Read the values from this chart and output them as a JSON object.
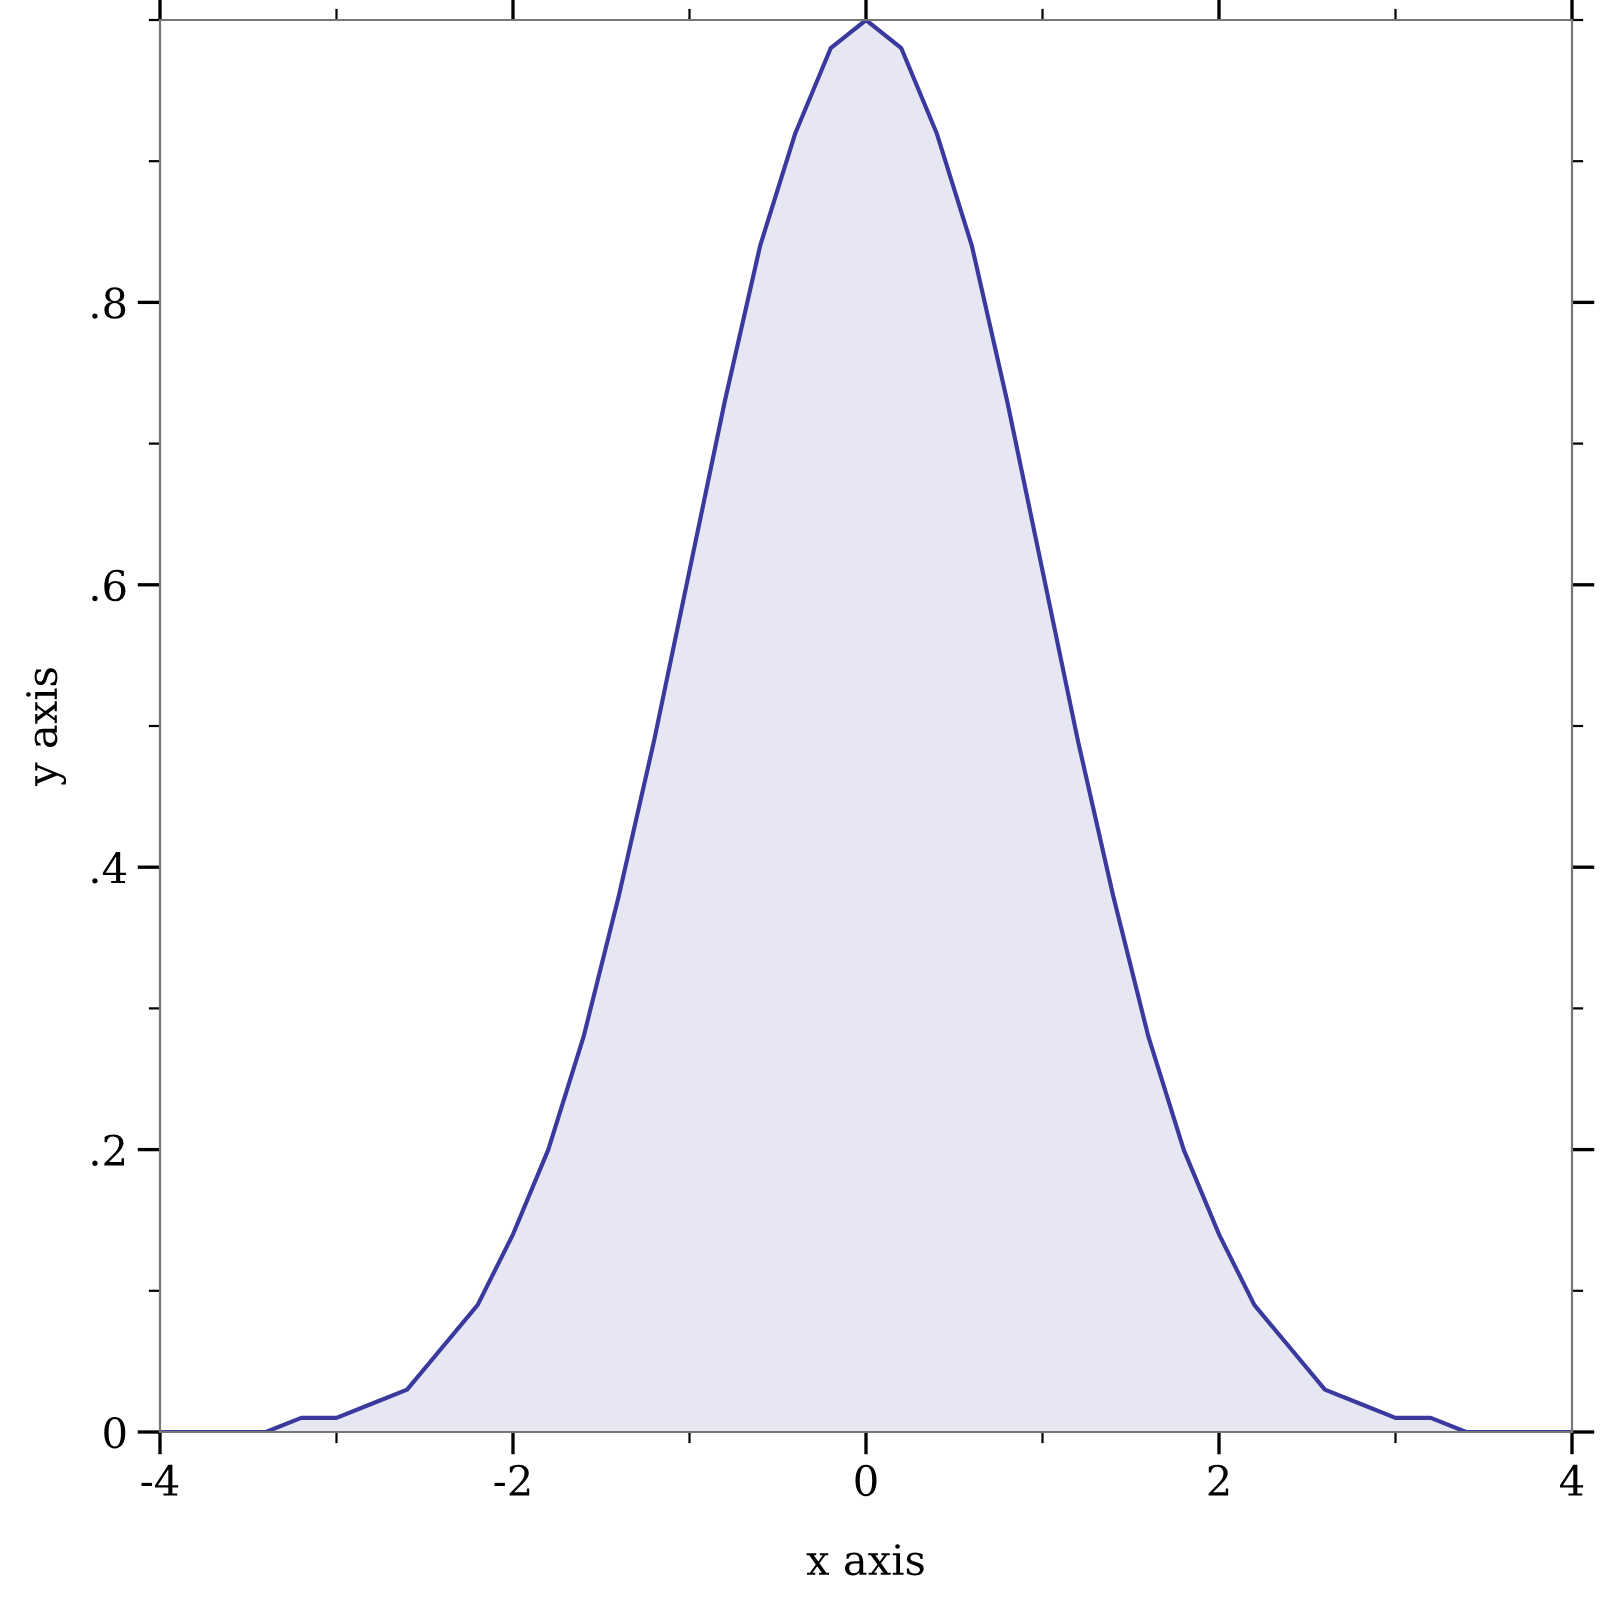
{
  "chart_data": {
    "type": "area",
    "xlabel": "x axis",
    "ylabel": "y axis",
    "x": [
      -4,
      -3.8,
      -3.6,
      -3.4,
      -3.2,
      -3,
      -2.8,
      -2.6,
      -2.4,
      -2.2,
      -2,
      -1.8,
      -1.6,
      -1.4,
      -1.2,
      -1,
      -0.8,
      -0.6,
      -0.4,
      -0.2,
      0,
      0.2,
      0.4,
      0.6,
      0.8,
      1,
      1.2,
      1.4,
      1.6,
      1.8,
      2,
      2.2,
      2.4,
      2.6,
      2.8,
      3,
      3.2,
      3.4,
      3.6,
      3.8,
      4
    ],
    "series": [
      {
        "color": "#3a3a9e",
        "values": [
          0,
          0,
          0,
          0,
          0.01,
          0.01,
          0.02,
          0.03,
          0.06,
          0.09,
          0.14,
          0.2,
          0.28,
          0.38,
          0.49,
          0.61,
          0.73,
          0.84,
          0.92,
          0.98,
          1,
          0.98,
          0.92,
          0.84,
          0.73,
          0.61,
          0.49,
          0.38,
          0.28,
          0.2,
          0.14,
          0.09,
          0.06,
          0.03,
          0.02,
          0.01,
          0.01,
          0,
          0,
          0,
          0
        ]
      }
    ],
    "xlim": [
      -4,
      4
    ],
    "ylim": [
      0,
      1
    ],
    "xticks": [
      -4,
      {
        "value": -3,
        "label": null
      },
      -2,
      {
        "value": -1,
        "label": null
      },
      0,
      {
        "value": 1,
        "label": null
      },
      2,
      {
        "value": 3,
        "label": null
      },
      4
    ],
    "yticks": [
      0,
      {
        "value": 0.1,
        "label": null
      },
      {
        "value": 0.2,
        "label": ".2"
      },
      {
        "value": 0.3,
        "label": null
      },
      {
        "value": 0.4,
        "label": ".4"
      },
      {
        "value": 0.5,
        "label": null
      },
      {
        "value": 0.6,
        "label": ".6"
      },
      {
        "value": 0.7,
        "label": null
      },
      {
        "value": 0.8,
        "label": ".8"
      },
      {
        "value": 0.9,
        "label": null
      },
      {
        "value": 1,
        "label": null
      }
    ],
    "grid": false,
    "legend": false
  }
}
